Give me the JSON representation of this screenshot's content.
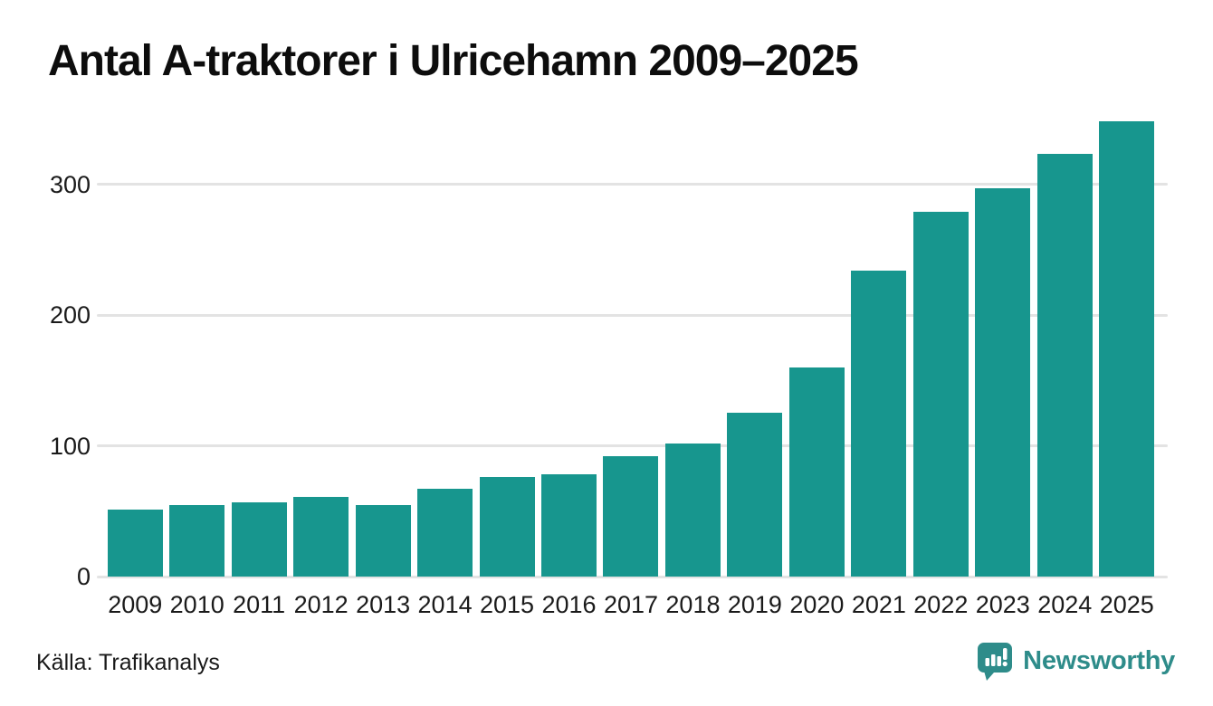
{
  "title": "Antal A-traktorer i Ulricehamn 2009–2025",
  "source": "Källa: Trafikanalys",
  "branding": {
    "name": "Newsworthy",
    "color": "#2e8c8a"
  },
  "colors": {
    "bar": "#17968e",
    "gridline": "#e3e3e3",
    "text": "#1a1a1a",
    "title": "#0d0d0d",
    "background": "#ffffff"
  },
  "chart_data": {
    "type": "bar",
    "title": "Antal A-traktorer i Ulricehamn 2009–2025",
    "categories": [
      "2009",
      "2010",
      "2011",
      "2012",
      "2013",
      "2014",
      "2015",
      "2016",
      "2017",
      "2018",
      "2019",
      "2020",
      "2021",
      "2022",
      "2023",
      "2024",
      "2025"
    ],
    "values": [
      51,
      55,
      57,
      61,
      55,
      67,
      76,
      78,
      92,
      102,
      125,
      160,
      234,
      279,
      297,
      323,
      348
    ],
    "xlabel": "",
    "ylabel": "",
    "ylim": [
      0,
      352
    ],
    "yticks": [
      0,
      100,
      200,
      300
    ],
    "grid": true,
    "legend": false,
    "bar_color": "#17968e",
    "source": "Källa: Trafikanalys"
  }
}
